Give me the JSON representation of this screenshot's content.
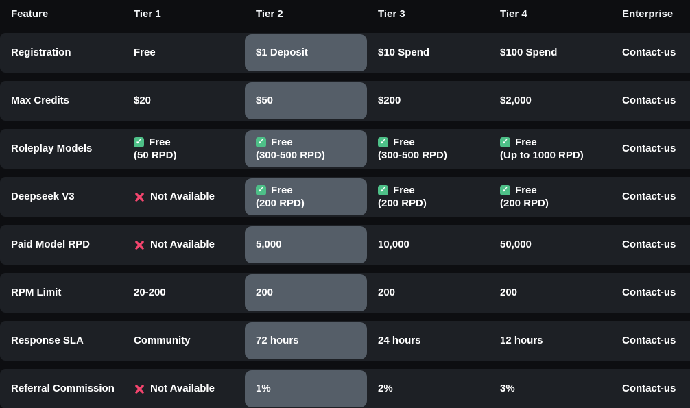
{
  "colors": {
    "page_bg": "#0d0e11",
    "row_bg": "#1d2025",
    "highlight_bg": "#555e68",
    "text": "#ffffff",
    "check_green": "#4ec088",
    "cross_red": "#f4456e"
  },
  "icons": {
    "check": "✓",
    "cross": "cross-icon"
  },
  "table": {
    "columns": [
      "Feature",
      "Tier 1",
      "Tier 2",
      "Tier 3",
      "Tier 4",
      "Enterprise"
    ],
    "highlighted_column": "Tier 2",
    "contact_label": "Contact-us",
    "rows": [
      {
        "feature": "Registration",
        "feature_link": false,
        "cells": [
          {
            "text": "Free"
          },
          {
            "text": "$1 Deposit"
          },
          {
            "text": "$10 Spend"
          },
          {
            "text": "$100 Spend"
          },
          {
            "text": "Contact-us",
            "link": true
          }
        ]
      },
      {
        "feature": "Max Credits",
        "feature_link": false,
        "cells": [
          {
            "text": "$20"
          },
          {
            "text": "$50"
          },
          {
            "text": "$200"
          },
          {
            "text": "$2,000"
          },
          {
            "text": "Contact-us",
            "link": true
          }
        ]
      },
      {
        "feature": "Roleplay Models",
        "feature_link": false,
        "cells": [
          {
            "icon": "check",
            "text": "Free",
            "subtext": "(50 RPD)"
          },
          {
            "icon": "check",
            "text": "Free",
            "subtext": "(300-500 RPD)"
          },
          {
            "icon": "check",
            "text": "Free",
            "subtext": "(300-500 RPD)"
          },
          {
            "icon": "check",
            "text": "Free",
            "subtext": "(Up to 1000 RPD)"
          },
          {
            "text": "Contact-us",
            "link": true
          }
        ]
      },
      {
        "feature": "Deepseek V3",
        "feature_link": false,
        "cells": [
          {
            "icon": "cross",
            "text": "Not Available"
          },
          {
            "icon": "check",
            "text": "Free",
            "subtext": "(200 RPD)"
          },
          {
            "icon": "check",
            "text": "Free",
            "subtext": "(200 RPD)"
          },
          {
            "icon": "check",
            "text": "Free",
            "subtext": "(200 RPD)"
          },
          {
            "text": "Contact-us",
            "link": true
          }
        ]
      },
      {
        "feature": "Paid Model RPD",
        "feature_link": true,
        "cells": [
          {
            "icon": "cross",
            "text": "Not Available"
          },
          {
            "text": "5,000"
          },
          {
            "text": "10,000"
          },
          {
            "text": "50,000"
          },
          {
            "text": "Contact-us",
            "link": true
          }
        ]
      },
      {
        "feature": "RPM Limit",
        "feature_link": false,
        "cells": [
          {
            "text": "20-200"
          },
          {
            "text": "200"
          },
          {
            "text": "200"
          },
          {
            "text": "200"
          },
          {
            "text": "Contact-us",
            "link": true
          }
        ]
      },
      {
        "feature": "Response SLA",
        "feature_link": false,
        "cells": [
          {
            "text": "Community"
          },
          {
            "text": "72 hours"
          },
          {
            "text": "24 hours"
          },
          {
            "text": "12 hours"
          },
          {
            "text": "Contact-us",
            "link": true
          }
        ]
      },
      {
        "feature": "Referral Commission",
        "feature_link": false,
        "cells": [
          {
            "icon": "cross",
            "text": "Not Available"
          },
          {
            "text": "1%"
          },
          {
            "text": "2%"
          },
          {
            "text": "3%"
          },
          {
            "text": "Contact-us",
            "link": true
          }
        ]
      }
    ]
  }
}
